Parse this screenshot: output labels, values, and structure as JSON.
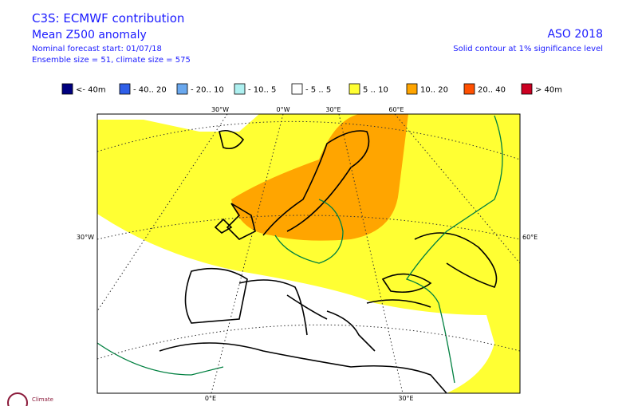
{
  "header": {
    "title": "C3S: ECMWF contribution",
    "subtitle": "Mean Z500 anomaly",
    "forecast_start": "Nominal forecast start: 01/07/18",
    "ensemble": "Ensemble size = 51, climate size = 575",
    "period": "ASO 2018",
    "note": "Solid contour at 1% significance level"
  },
  "legend": [
    {
      "label": "<- 40m",
      "color": "#00007f"
    },
    {
      "label": "- 40.. 20",
      "color": "#2f5fe8"
    },
    {
      "label": "- 20.. 10",
      "color": "#6aa8ee"
    },
    {
      "label": "- 10.. 5",
      "color": "#aef0f0"
    },
    {
      "label": "- 5 .. 5",
      "color": "#ffffff"
    },
    {
      "label": "5 .. 10",
      "color": "#ffff33"
    },
    {
      "label": "10.. 20",
      "color": "#ffa500"
    },
    {
      "label": "20.. 40",
      "color": "#ff5000"
    },
    {
      "label": "> 40m",
      "color": "#cc0022"
    }
  ],
  "graticule": {
    "top": [
      "30°W",
      "0°W",
      "30°E",
      "60°E"
    ],
    "left": "30°W",
    "right": "60°E",
    "bottom": [
      "0°E",
      "30°E"
    ]
  },
  "logo": "Climate"
}
